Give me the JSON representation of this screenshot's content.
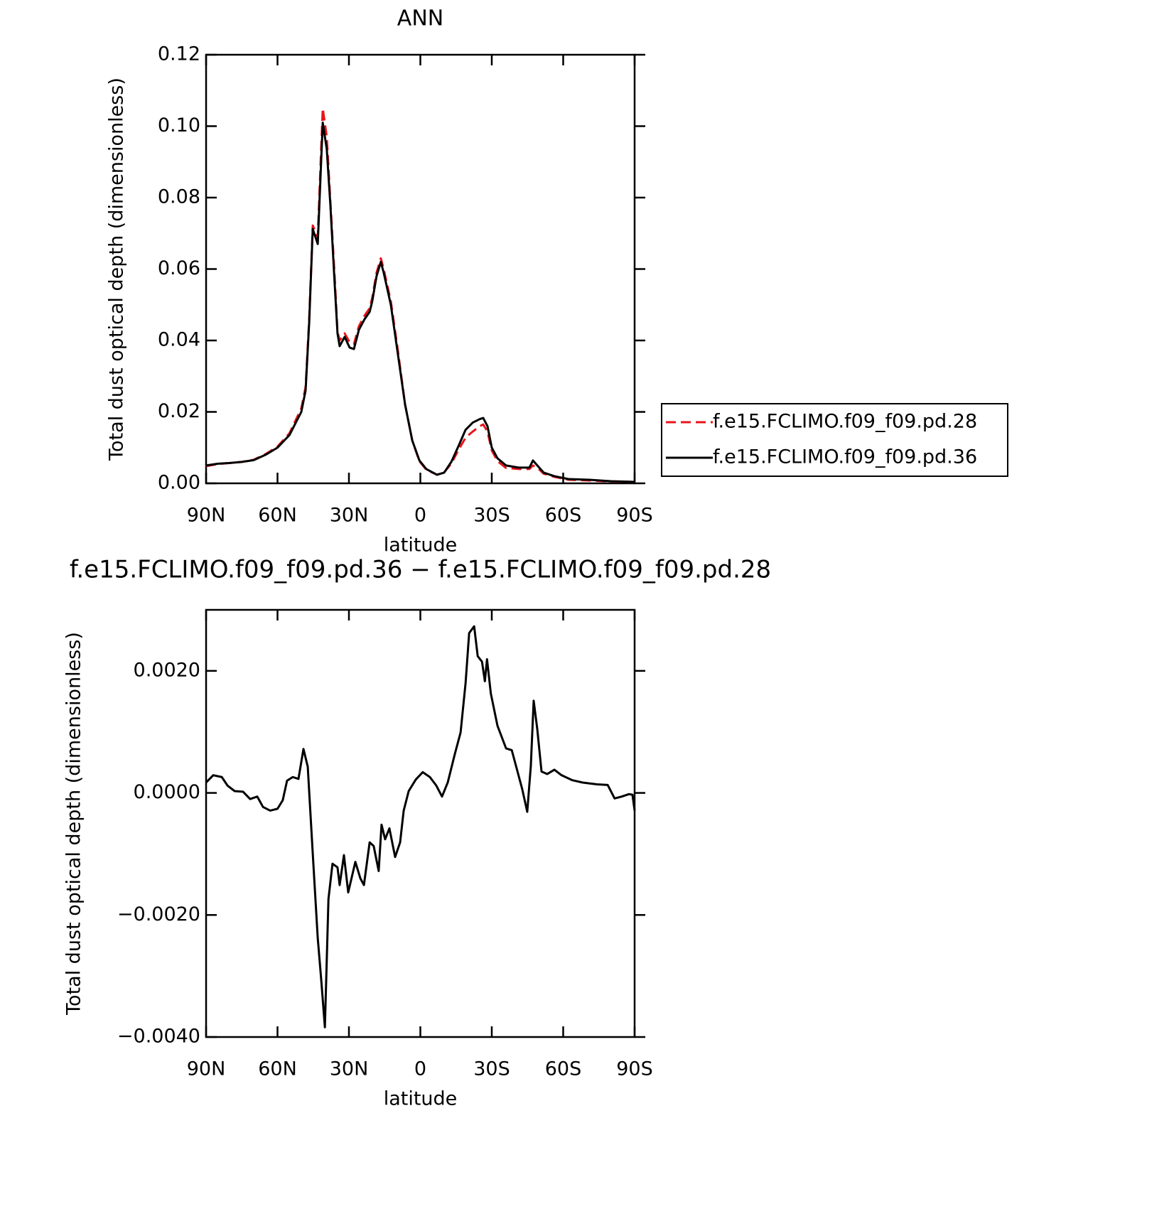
{
  "chart_data": [
    {
      "type": "line",
      "title": "ANN",
      "xlabel": "latitude",
      "ylabel": "Total dust optical depth (dimensionless)",
      "xlim": [
        90,
        -90
      ],
      "xticks": [
        {
          "value": 90,
          "label": "90N"
        },
        {
          "value": 60,
          "label": "60N"
        },
        {
          "value": 30,
          "label": "30N"
        },
        0,
        {
          "value": -30,
          "label": "30S"
        },
        {
          "value": -60,
          "label": "60S"
        },
        {
          "value": -90,
          "label": "90S"
        }
      ],
      "ylim": [
        0,
        0.12
      ],
      "yticks": [
        {
          "value": 0,
          "label": "0.00"
        },
        {
          "value": 0.02,
          "label": "0.02"
        },
        {
          "value": 0.04,
          "label": "0.04"
        },
        {
          "value": 0.06,
          "label": "0.06"
        },
        {
          "value": 0.08,
          "label": "0.08"
        },
        {
          "value": 0.1,
          "label": "0.10"
        },
        {
          "value": 0.12,
          "label": "0.12"
        }
      ],
      "legend": "right",
      "x": [
        90,
        85,
        80,
        75,
        70,
        65,
        60,
        55,
        50,
        48.2,
        46.7,
        45.2,
        43.1,
        41,
        39.3,
        37.8,
        36,
        34.8,
        33.9,
        31.8,
        29.7,
        27.9,
        25.8,
        23.4,
        21.3,
        20.2,
        18.4,
        16.6,
        15.4,
        12.4,
        9.4,
        6.4,
        3.4,
        0.4,
        -2.5,
        -7,
        -10,
        -13,
        -16,
        -19,
        -22,
        -25,
        -26.4,
        -28.2,
        -30,
        -32.4,
        -36,
        -41.3,
        -45.8,
        -47.3,
        -49.4,
        -51.8,
        -56.3,
        -62.2,
        -71,
        -80,
        -90
      ],
      "series": [
        {
          "name": "f.e15.FCLIMO.f09_f09.pd.28",
          "color": "#e8141c",
          "dash": "dashed",
          "values": [
            0.0048,
            0.0054,
            0.0057,
            0.006,
            0.0066,
            0.0082,
            0.0103,
            0.014,
            0.021,
            0.027,
            0.046,
            0.0722,
            0.069,
            0.105,
            0.097,
            0.079,
            0.058,
            0.0425,
            0.04,
            0.042,
            0.0395,
            0.039,
            0.044,
            0.047,
            0.049,
            0.052,
            0.059,
            0.063,
            0.06,
            0.051,
            0.037,
            0.022,
            0.012,
            0.0062,
            0.0038,
            0.0024,
            0.0031,
            0.0055,
            0.0093,
            0.0128,
            0.0145,
            0.016,
            0.0165,
            0.0145,
            0.0092,
            0.0062,
            0.0043,
            0.004,
            0.004,
            0.005,
            0.0042,
            0.0027,
            0.0018,
            0.001,
            0.0008,
            0.0005,
            0.0004
          ]
        },
        {
          "name": "f.e15.FCLIMO.f09_f09.pd.36",
          "color": "#000000",
          "dash": "solid",
          "values": [
            0.005,
            0.0055,
            0.0057,
            0.006,
            0.0065,
            0.008,
            0.01,
            0.0135,
            0.02,
            0.026,
            0.045,
            0.0712,
            0.067,
            0.101,
            0.0935,
            0.078,
            0.056,
            0.042,
            0.0384,
            0.041,
            0.038,
            0.0376,
            0.043,
            0.046,
            0.048,
            0.051,
            0.058,
            0.062,
            0.059,
            0.05,
            0.036,
            0.022,
            0.012,
            0.0064,
            0.004,
            0.0024,
            0.003,
            0.006,
            0.0104,
            0.015,
            0.017,
            0.018,
            0.0183,
            0.016,
            0.01,
            0.007,
            0.005,
            0.0044,
            0.0044,
            0.0064,
            0.0048,
            0.003,
            0.002,
            0.0012,
            0.001,
            0.0006,
            0.0004
          ]
        }
      ]
    },
    {
      "type": "line",
      "title": "f.e15.FCLIMO.f09_f09.pd.36 − f.e15.FCLIMO.f09_f09.pd.28",
      "xlabel": "latitude",
      "ylabel": "Total dust optical depth (dimensionless)",
      "xlim": [
        90,
        -90
      ],
      "xticks": [
        {
          "value": 90,
          "label": "90N"
        },
        {
          "value": 60,
          "label": "60N"
        },
        {
          "value": 30,
          "label": "30N"
        },
        0,
        {
          "value": -30,
          "label": "30S"
        },
        {
          "value": -60,
          "label": "60S"
        },
        {
          "value": -90,
          "label": "90S"
        }
      ],
      "ylim": [
        -0.004,
        0.003
      ],
      "yticks": [
        {
          "value": -0.004,
          "label": "−0.0040"
        },
        {
          "value": -0.002,
          "label": "−0.0020"
        },
        {
          "value": 0,
          "label": "0.0000"
        },
        {
          "value": 0.002,
          "label": "0.0020"
        }
      ],
      "x": [
        90,
        87,
        83.4,
        81,
        78,
        74.5,
        71.5,
        68.5,
        66.1,
        63.1,
        60,
        57.8,
        56,
        53.6,
        51.2,
        49.1,
        47.3,
        45.2,
        43.1,
        41.6,
        40.1,
        38.6,
        36.9,
        34.8,
        33.9,
        32.1,
        30.3,
        27.3,
        25.2,
        23.7,
        21.3,
        19.6,
        17.5,
        16.3,
        14.8,
        13,
        10.6,
        8.5,
        7,
        4.9,
        1.9,
        -1,
        -4,
        -6.7,
        -9.1,
        -11.5,
        -14.5,
        -16.9,
        -19,
        -20.5,
        -22.6,
        -24.1,
        -25.9,
        -27.1,
        -28,
        -29.6,
        -32.4,
        -36,
        -38.4,
        -40.4,
        -42.8,
        -44.9,
        -46.4,
        -47.6,
        -49.1,
        -50.9,
        -53.3,
        -56.3,
        -59.3,
        -63.7,
        -68.2,
        -74.2,
        -78.7,
        -81.6,
        -84.6,
        -87.6,
        -89.1,
        -90
      ],
      "series": [
        {
          "color": "#000000",
          "dash": "solid",
          "values": [
            0.00017,
            0.00029,
            0.00026,
            0.00012,
            3e-05,
            2e-05,
            -0.0001,
            -6e-05,
            -0.00023,
            -0.00029,
            -0.00026,
            -0.00012,
            0.0002,
            0.00026,
            0.00023,
            0.00072,
            0.00043,
            -0.00099,
            -0.00238,
            -0.00308,
            -0.00384,
            -0.00174,
            -0.00116,
            -0.00122,
            -0.00151,
            -0.00102,
            -0.00163,
            -0.00113,
            -0.0014,
            -0.00151,
            -0.00081,
            -0.00087,
            -0.00128,
            -0.00052,
            -0.00076,
            -0.00058,
            -0.00105,
            -0.00081,
            -0.00029,
            3e-05,
            0.00022,
            0.00034,
            0.00026,
            0.00012,
            -6e-05,
            0.00017,
            0.00064,
            0.00099,
            0.0018,
            0.00262,
            0.00273,
            0.00224,
            0.00215,
            0.00183,
            0.00219,
            0.00163,
            0.0011,
            0.00073,
            0.0007,
            0.00041,
            6e-05,
            -0.00031,
            0.00044,
            0.00151,
            0.00105,
            0.00035,
            0.00031,
            0.00038,
            0.00029,
            0.00021,
            0.00017,
            0.00014,
            0.00013,
            -9e-05,
            -6e-05,
            -2e-05,
            -3e-05,
            -0.00029
          ]
        }
      ]
    }
  ]
}
